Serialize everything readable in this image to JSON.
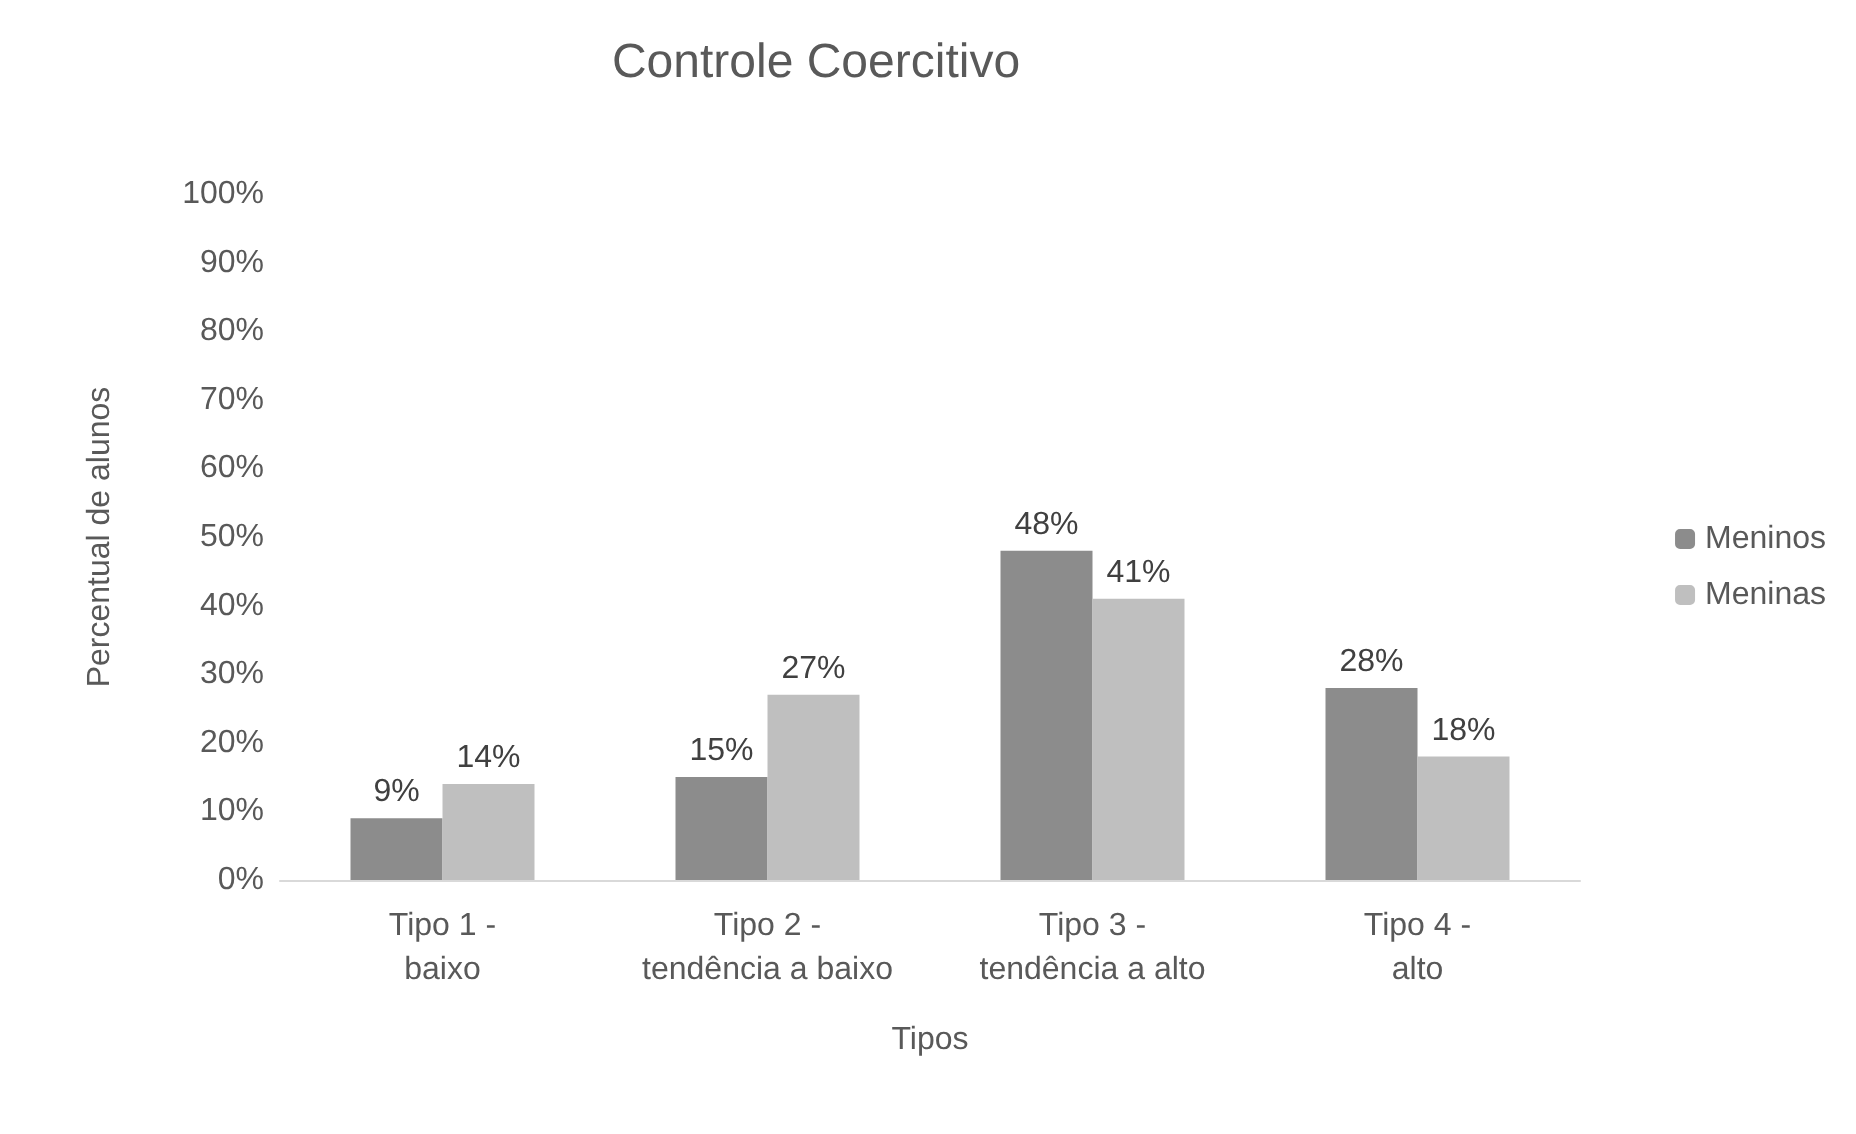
{
  "chart_data": {
    "type": "bar",
    "title": "Controle Coercitivo",
    "xlabel": "Tipos",
    "ylabel": "Percentual de alunos",
    "categories": [
      "Tipo 1 -\nbaixo",
      "Tipo 2 -\ntendência a baixo",
      "Tipo 3 -\ntendência a alto",
      "Tipo 4 -\nalto"
    ],
    "series": [
      {
        "name": "Meninos",
        "color": "#8c8c8c",
        "values": [
          9,
          15,
          48,
          28
        ],
        "value_labels": [
          "9%",
          "15%",
          "48%",
          "28%"
        ]
      },
      {
        "name": "Meninas",
        "color": "#bfbfbf",
        "values": [
          14,
          27,
          41,
          18
        ],
        "value_labels": [
          "14%",
          "27%",
          "41%",
          "18%"
        ]
      }
    ],
    "ylim": [
      0,
      100
    ],
    "yticks": [
      {
        "value": 0,
        "label": "0%"
      },
      {
        "value": 10,
        "label": "10%"
      },
      {
        "value": 20,
        "label": "20%"
      },
      {
        "value": 30,
        "label": "30%"
      },
      {
        "value": 40,
        "label": "40%"
      },
      {
        "value": 50,
        "label": "50%"
      },
      {
        "value": 60,
        "label": "60%"
      },
      {
        "value": 70,
        "label": "70%"
      },
      {
        "value": 80,
        "label": "80%"
      },
      {
        "value": 90,
        "label": "90%"
      },
      {
        "value": 100,
        "label": "100%"
      }
    ],
    "grid": false,
    "legend": "right"
  }
}
